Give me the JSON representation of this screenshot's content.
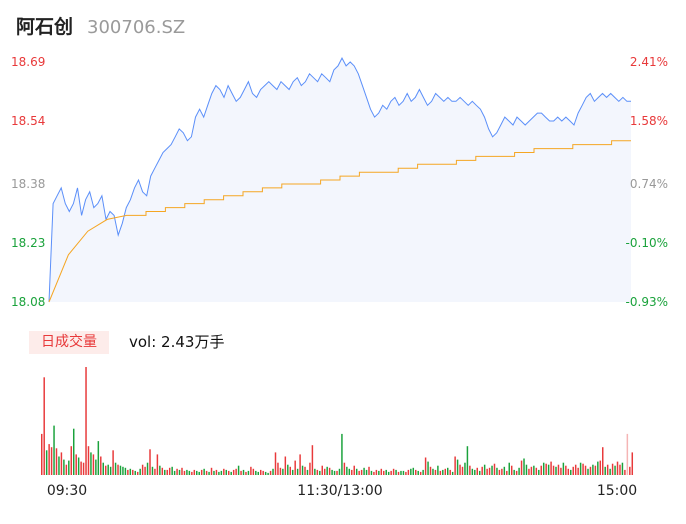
{
  "header": {
    "name": "阿石创",
    "code": "300706.SZ"
  },
  "volume_panel": {
    "tab_label": "日成交量",
    "vol_prefix": "vol: ",
    "vol_value": "2.43万手"
  },
  "colors": {
    "price_line": "#5b8ff9",
    "avg_line": "#f5a623",
    "up": "#e8393a",
    "down": "#1aa23b",
    "flat": "#999999",
    "area_fill": "#f3f6fd"
  },
  "chart_data": [
    {
      "type": "line",
      "title": "",
      "xlabel": "",
      "ylabel": "",
      "y_left_ticks": [
        "18.69",
        "18.54",
        "18.38",
        "18.23",
        "18.08"
      ],
      "y_right_ticks": [
        "2.41%",
        "1.58%",
        "0.74%",
        "-0.10%",
        "-0.93%"
      ],
      "ylim": [
        18.08,
        18.69
      ],
      "prev_close": 18.25,
      "series": [
        {
          "role": "price",
          "values": [
            18.08,
            18.33,
            18.35,
            18.37,
            18.33,
            18.31,
            18.33,
            18.37,
            18.3,
            18.34,
            18.36,
            18.32,
            18.33,
            18.35,
            18.29,
            18.31,
            18.3,
            18.25,
            18.28,
            18.32,
            18.34,
            18.37,
            18.39,
            18.36,
            18.35,
            18.4,
            18.42,
            18.44,
            18.46,
            18.47,
            18.48,
            18.5,
            18.52,
            18.51,
            18.49,
            18.5,
            18.55,
            18.57,
            18.55,
            18.58,
            18.61,
            18.63,
            18.62,
            18.6,
            18.63,
            18.61,
            18.59,
            18.6,
            18.62,
            18.64,
            18.61,
            18.6,
            18.62,
            18.63,
            18.64,
            18.63,
            18.62,
            18.64,
            18.63,
            18.62,
            18.64,
            18.65,
            18.63,
            18.64,
            18.66,
            18.65,
            18.64,
            18.66,
            18.65,
            18.64,
            18.67,
            18.68,
            18.7,
            18.68,
            18.69,
            18.68,
            18.66,
            18.63,
            18.6,
            18.57,
            18.55,
            18.56,
            18.58,
            18.57,
            18.59,
            18.6,
            18.58,
            18.59,
            18.61,
            18.59,
            18.6,
            18.62,
            18.6,
            18.58,
            18.59,
            18.61,
            18.6,
            18.59,
            18.6,
            18.59,
            18.59,
            18.6,
            18.59,
            18.58,
            18.59,
            18.58,
            18.57,
            18.55,
            18.52,
            18.5,
            18.51,
            18.53,
            18.55,
            18.54,
            18.53,
            18.55,
            18.54,
            18.53,
            18.54,
            18.55,
            18.56,
            18.56,
            18.55,
            18.54,
            18.54,
            18.55,
            18.54,
            18.55,
            18.54,
            18.53,
            18.56,
            18.58,
            18.6,
            18.61,
            18.59,
            18.6,
            18.61,
            18.6,
            18.61,
            18.6,
            18.59,
            18.6,
            18.59,
            18.59
          ],
          "x_range": [
            0,
            240
          ]
        },
        {
          "role": "average",
          "values": [
            18.08,
            18.2,
            18.26,
            18.29,
            18.3,
            18.31,
            18.31,
            18.32,
            18.33,
            18.34,
            18.35,
            18.36,
            18.37,
            18.38,
            18.38,
            18.39,
            18.4,
            18.41,
            18.41,
            18.42,
            18.43,
            18.43,
            18.44,
            18.45,
            18.45,
            18.46,
            18.47,
            18.47,
            18.48,
            18.48,
            18.49
          ],
          "x_range": [
            0,
            240
          ]
        }
      ],
      "x_ticks": [
        "09:30",
        "11:30/13:00",
        "15:00"
      ]
    },
    {
      "type": "bar",
      "title": "",
      "ylabel": "",
      "volume_values": [
        40,
        95,
        24,
        30,
        27,
        48,
        26,
        18,
        22,
        15,
        10,
        14,
        28,
        45,
        20,
        17,
        13,
        12,
        105,
        28,
        22,
        20,
        15,
        33,
        18,
        12,
        9,
        10,
        8,
        24,
        12,
        10,
        9,
        8,
        7,
        5,
        6,
        5,
        4,
        3,
        6,
        10,
        8,
        12,
        25,
        8,
        6,
        20,
        9,
        7,
        5,
        5,
        7,
        8,
        4,
        6,
        5,
        7,
        4,
        5,
        4,
        3,
        5,
        4,
        3,
        5,
        6,
        4,
        3,
        7,
        4,
        5,
        3,
        4,
        6,
        5,
        4,
        3,
        5,
        6,
        9,
        4,
        5,
        3,
        4,
        8,
        6,
        4,
        3,
        5,
        4,
        3,
        2,
        4,
        6,
        22,
        12,
        7,
        6,
        18,
        10,
        8,
        5,
        14,
        6,
        20,
        9,
        8,
        5,
        12,
        29,
        6,
        5,
        4,
        9,
        6,
        8,
        7,
        5,
        4,
        4,
        6,
        40,
        12,
        8,
        6,
        5,
        9,
        6,
        4,
        5,
        7,
        5,
        8,
        4,
        3,
        5,
        4,
        6,
        4,
        5,
        3,
        4,
        6,
        5,
        3,
        4,
        4,
        3,
        5,
        6,
        7,
        5,
        4,
        3,
        5,
        17,
        13,
        8,
        6,
        5,
        9,
        4,
        5,
        6,
        7,
        5,
        3,
        18,
        15,
        10,
        8,
        12,
        28,
        9,
        6,
        5,
        7,
        4,
        8,
        10,
        6,
        7,
        9,
        11,
        7,
        5,
        6,
        8,
        4,
        12,
        9,
        5,
        4,
        7,
        14,
        16,
        10,
        6,
        8,
        9,
        7,
        5,
        9,
        12,
        11,
        10,
        13,
        9,
        8,
        10,
        7,
        12,
        9,
        6,
        5,
        8,
        10,
        7,
        12,
        11,
        9,
        6,
        8,
        10,
        9,
        13,
        14,
        27,
        8,
        10,
        6,
        11,
        9,
        13,
        10,
        12,
        5,
        40,
        8,
        22
      ],
      "volume_colors": [
        "u",
        "u",
        "d",
        "u",
        "u",
        "d",
        "u",
        "d",
        "u",
        "d",
        "u",
        "d",
        "u",
        "d",
        "u",
        "d",
        "u",
        "u",
        "u",
        "u",
        "d",
        "u",
        "d",
        "d",
        "u",
        "d",
        "u",
        "d",
        "d",
        "u",
        "d",
        "u",
        "d",
        "d",
        "d",
        "u",
        "d",
        "u",
        "d",
        "u",
        "d",
        "u",
        "u",
        "d",
        "u",
        "d",
        "u",
        "u",
        "d",
        "u",
        "d",
        "u",
        "u",
        "d",
        "d",
        "u",
        "d",
        "u",
        "u",
        "d",
        "d",
        "u",
        "u",
        "d",
        "d",
        "u",
        "d",
        "u",
        "d",
        "u",
        "d",
        "u",
        "d",
        "d",
        "u",
        "d",
        "u",
        "d",
        "u",
        "u",
        "d",
        "u",
        "d",
        "u",
        "d",
        "u",
        "u",
        "d",
        "d",
        "u",
        "u",
        "d",
        "d",
        "u",
        "d",
        "u",
        "u",
        "u",
        "d",
        "u",
        "d",
        "u",
        "d",
        "u",
        "d",
        "u",
        "d",
        "u",
        "d",
        "u",
        "u",
        "d",
        "u",
        "d",
        "u",
        "u",
        "d",
        "u",
        "d",
        "d",
        "u",
        "d",
        "d",
        "u",
        "d",
        "d",
        "u",
        "u",
        "d",
        "u",
        "u",
        "d",
        "d",
        "u",
        "d",
        "u",
        "u",
        "d",
        "u",
        "u",
        "d",
        "d",
        "u",
        "u",
        "d",
        "u",
        "d",
        "d",
        "u",
        "u",
        "d",
        "d",
        "u",
        "d",
        "u",
        "d",
        "u",
        "d",
        "u",
        "d",
        "u",
        "d",
        "u",
        "d",
        "u",
        "d",
        "u",
        "d",
        "u",
        "d",
        "u",
        "u",
        "d",
        "d",
        "u",
        "d",
        "d",
        "u",
        "d",
        "u",
        "d",
        "u",
        "u",
        "d",
        "u",
        "d",
        "u",
        "u",
        "d",
        "u",
        "d",
        "u",
        "d",
        "u",
        "d",
        "u",
        "d",
        "d",
        "u",
        "u",
        "d",
        "u",
        "d",
        "u",
        "d",
        "u",
        "d",
        "u",
        "u",
        "d",
        "u",
        "u",
        "d",
        "u",
        "u",
        "d",
        "u",
        "u",
        "u",
        "d",
        "u",
        "u",
        "d",
        "u",
        "d",
        "u",
        "d",
        "u",
        "u",
        "d",
        "u",
        "d",
        "u",
        "d",
        "u",
        "u",
        "d",
        "u",
        "f",
        "u",
        "u",
        "u",
        "d",
        "u"
      ]
    }
  ]
}
